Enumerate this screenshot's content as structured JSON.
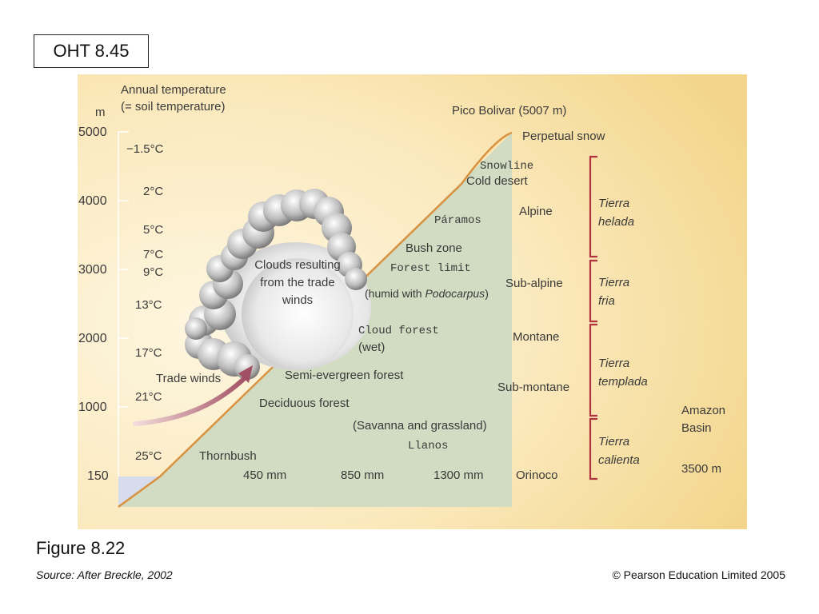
{
  "header": {
    "slide_label": "OHT 8.45"
  },
  "figure": {
    "title": "Figure 8.22",
    "source": "Source: After Breckle, 2002",
    "copyright": "© Pearson Education Limited 2005"
  },
  "axis": {
    "unit": "m",
    "temp_title_1": "Annual temperature",
    "temp_title_2": "(= soil temperature)",
    "ticks": [
      "5000",
      "4000",
      "3000",
      "2000",
      "1000",
      "150"
    ]
  },
  "temperatures": [
    "−1.5°C",
    "2°C",
    "5°C",
    "7°C",
    "9°C",
    "13°C",
    "17°C",
    "21°C",
    "25°C"
  ],
  "peak": {
    "label": "Pico Bolivar (5007 m)",
    "snow": "Perpetual snow"
  },
  "vegetation": {
    "snowline": "Snowline",
    "cold_desert": "Cold desert",
    "paramos": "Páramos",
    "bush_zone": "Bush zone",
    "forest_limit": "Forest limit",
    "humid_with": "(humid with ",
    "podocarpus": "Podocarpus",
    "humid_close": ")",
    "cloud_forest": "Cloud forest",
    "wet": "(wet)",
    "semi_evergreen": "Semi-evergreen forest",
    "deciduous": "Deciduous forest",
    "savanna": "(Savanna and grassland)",
    "llanos": "Llanos",
    "thornbush": "Thornbush"
  },
  "clouds": {
    "line1": "Clouds resulting",
    "line2": "from the trade",
    "line3": "winds"
  },
  "trade_winds": "Trade winds",
  "rainfall": [
    "450 mm",
    "850 mm",
    "1300 mm"
  ],
  "orinoco": "Orinoco",
  "zones": [
    "Alpine",
    "Sub-alpine",
    "Montane",
    "Sub-montane"
  ],
  "tierra": [
    {
      "line1": "Tierra",
      "line2": "helada"
    },
    {
      "line1": "Tierra",
      "line2": "fria"
    },
    {
      "line1": "Tierra",
      "line2": "templada"
    },
    {
      "line1": "Tierra",
      "line2": "calienta"
    }
  ],
  "amazon": {
    "line1": "Amazon",
    "line2": "Basin",
    "rain": "3500 m"
  },
  "colors": {
    "slope_fill": "#d2dcc3",
    "slope_line": "#d9923f",
    "bracket": "#b0343f",
    "arrow": "#a85a6a"
  }
}
